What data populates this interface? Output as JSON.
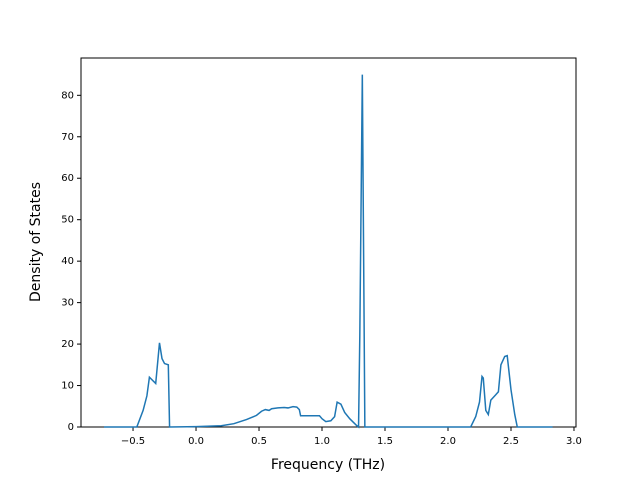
{
  "chart_data": {
    "type": "line",
    "x_label": "Frequency (THz)",
    "y_label": "Density of States",
    "x": [
      -0.73,
      -0.47,
      -0.42,
      -0.39,
      -0.37,
      -0.32,
      -0.29,
      -0.27,
      -0.25,
      -0.22,
      -0.21,
      0.0,
      0.2,
      0.3,
      0.4,
      0.48,
      0.52,
      0.55,
      0.58,
      0.6,
      0.65,
      0.7,
      0.73,
      0.77,
      0.8,
      0.82,
      0.83,
      0.9,
      0.95,
      0.98,
      1.0,
      1.03,
      1.07,
      1.1,
      1.12,
      1.15,
      1.18,
      1.22,
      1.27,
      1.29,
      1.3,
      1.32,
      1.34,
      1.5,
      2.18,
      2.22,
      2.25,
      2.27,
      2.28,
      2.3,
      2.32,
      2.34,
      2.38,
      2.4,
      2.42,
      2.45,
      2.47,
      2.5,
      2.53,
      2.55,
      2.83
    ],
    "series": [
      {
        "color": "#1f77b4",
        "values": [
          0,
          0,
          4,
          7.5,
          12,
          10.5,
          20.3,
          16.5,
          15.3,
          15,
          0,
          0.1,
          0.3,
          0.8,
          1.8,
          2.8,
          3.8,
          4.2,
          4.0,
          4.4,
          4.6,
          4.7,
          4.6,
          4.9,
          4.8,
          4.2,
          2.7,
          2.7,
          2.7,
          2.7,
          2.0,
          1.3,
          1.5,
          2.5,
          6.0,
          5.5,
          3.5,
          2.0,
          0.5,
          0,
          22,
          85,
          0,
          0,
          0,
          2.5,
          6,
          12.2,
          11.8,
          4,
          3,
          6.5,
          7.8,
          8.5,
          15,
          17,
          17.2,
          9,
          3,
          0,
          0
        ]
      }
    ],
    "xlim": [
      -0.913,
      3.016
    ],
    "ylim": [
      0,
      89
    ],
    "xticks": [
      {
        "value": -0.5,
        "label": "−0.5"
      },
      {
        "value": 0,
        "label": "0.0"
      },
      {
        "value": 0.5,
        "label": "0.5"
      },
      {
        "value": 1,
        "label": "1.0"
      },
      {
        "value": 1.5,
        "label": "1.5"
      },
      {
        "value": 2,
        "label": "2.0"
      },
      {
        "value": 2.5,
        "label": "2.5"
      },
      {
        "value": 3,
        "label": "3.0"
      }
    ],
    "yticks": [
      0,
      10,
      20,
      30,
      40,
      50,
      60,
      70,
      80
    ],
    "grid": false
  }
}
